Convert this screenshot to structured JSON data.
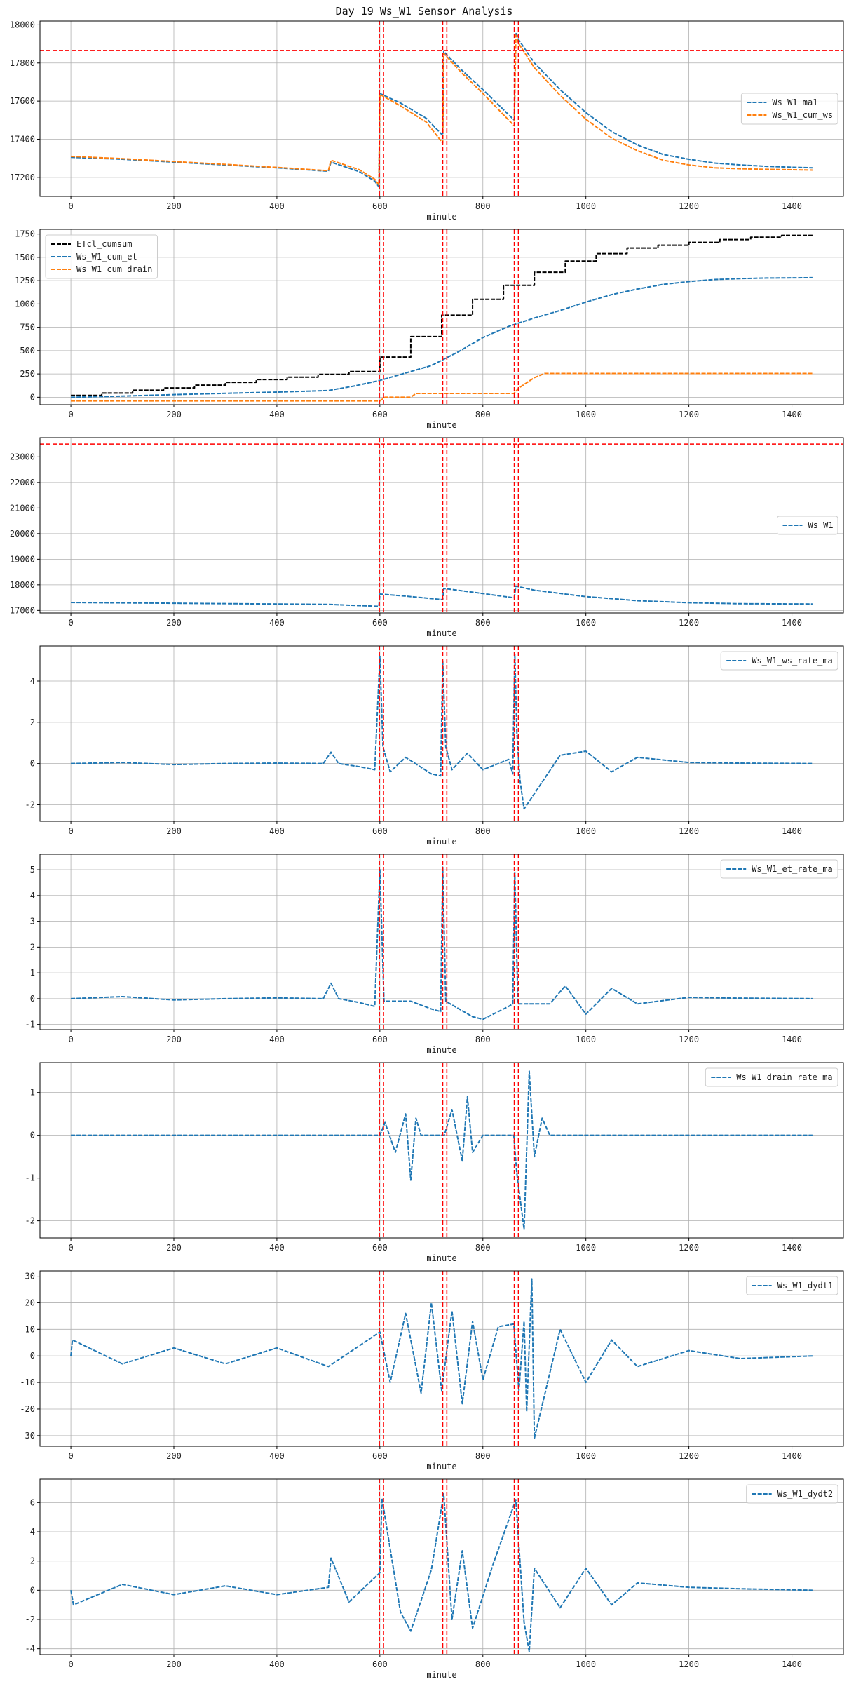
{
  "figure": {
    "title": "Day 19 Ws_W1 Sensor Analysis"
  },
  "chart_data": [
    {
      "type": "line",
      "xlabel": "minute",
      "xlim": [
        -60,
        1500
      ],
      "ylim": [
        17100,
        18020
      ],
      "xticks": [
        0,
        200,
        400,
        600,
        800,
        1000,
        1200,
        1400
      ],
      "yticks": [
        17200,
        17400,
        17600,
        17800,
        18000
      ],
      "hlines": [
        17865
      ],
      "vlines": [
        599,
        607,
        722,
        730,
        861,
        869
      ],
      "legend": "center-right",
      "series": [
        {
          "name": "Ws_W1_ma1",
          "color": "#1f77b4",
          "style": "dashed",
          "x": [
            0,
            100,
            200,
            300,
            400,
            500,
            505,
            560,
            590,
            598,
            600,
            640,
            690,
            722,
            724,
            760,
            800,
            861,
            864,
            870,
            900,
            950,
            1000,
            1050,
            1100,
            1150,
            1200,
            1250,
            1300,
            1350,
            1400,
            1440
          ],
          "y": [
            17305,
            17295,
            17280,
            17265,
            17250,
            17232,
            17280,
            17230,
            17180,
            17150,
            17640,
            17590,
            17510,
            17420,
            17860,
            17760,
            17660,
            17500,
            17960,
            17920,
            17800,
            17660,
            17540,
            17440,
            17370,
            17320,
            17295,
            17275,
            17265,
            17258,
            17253,
            17250
          ]
        },
        {
          "name": "Ws_W1_cum_ws",
          "color": "#ff7f0e",
          "style": "dashed",
          "x": [
            0,
            100,
            200,
            300,
            400,
            500,
            505,
            560,
            590,
            598,
            600,
            640,
            690,
            722,
            724,
            760,
            800,
            861,
            864,
            870,
            900,
            950,
            1000,
            1050,
            1100,
            1150,
            1200,
            1250,
            1300,
            1350,
            1400,
            1440
          ],
          "y": [
            17310,
            17298,
            17283,
            17268,
            17252,
            17235,
            17290,
            17240,
            17190,
            17160,
            17635,
            17575,
            17490,
            17380,
            17850,
            17745,
            17640,
            17470,
            17945,
            17900,
            17775,
            17630,
            17505,
            17405,
            17340,
            17290,
            17265,
            17250,
            17245,
            17242,
            17240,
            17238
          ]
        }
      ]
    },
    {
      "type": "line",
      "xlabel": "minute",
      "xlim": [
        -60,
        1500
      ],
      "ylim": [
        -80,
        1800
      ],
      "xticks": [
        0,
        200,
        400,
        600,
        800,
        1000,
        1200,
        1400
      ],
      "yticks": [
        0,
        250,
        500,
        750,
        1000,
        1250,
        1500,
        1750
      ],
      "hlines": [],
      "vlines": [
        599,
        607,
        722,
        730,
        861,
        869
      ],
      "legend": "top-left",
      "series": [
        {
          "name": "ETcl_cumsum",
          "color": "#000000",
          "style": "dashed",
          "step": true,
          "x": [
            0,
            60,
            120,
            180,
            240,
            300,
            360,
            420,
            480,
            540,
            600,
            660,
            720,
            780,
            840,
            900,
            960,
            1020,
            1080,
            1140,
            1200,
            1260,
            1320,
            1380,
            1440
          ],
          "y": [
            20,
            45,
            75,
            100,
            130,
            160,
            190,
            215,
            245,
            275,
            430,
            650,
            880,
            1050,
            1200,
            1340,
            1460,
            1540,
            1600,
            1630,
            1660,
            1690,
            1715,
            1735,
            1750
          ]
        },
        {
          "name": "Ws_W1_cum_et",
          "color": "#1f77b4",
          "style": "dashed",
          "x": [
            0,
            100,
            200,
            300,
            400,
            500,
            550,
            600,
            650,
            700,
            750,
            800,
            850,
            900,
            950,
            1000,
            1050,
            1100,
            1150,
            1200,
            1250,
            1300,
            1350,
            1400,
            1440
          ],
          "y": [
            0,
            12,
            28,
            42,
            55,
            72,
            120,
            180,
            260,
            340,
            480,
            640,
            760,
            850,
            930,
            1020,
            1100,
            1160,
            1210,
            1240,
            1262,
            1272,
            1278,
            1280,
            1282
          ]
        },
        {
          "name": "Ws_W1_cum_drain",
          "color": "#ff7f0e",
          "style": "dashed",
          "x": [
            0,
            600,
            610,
            660,
            670,
            730,
            740,
            860,
            870,
            900,
            920,
            940,
            1000,
            1200,
            1440
          ],
          "y": [
            -40,
            -40,
            0,
            0,
            40,
            40,
            40,
            40,
            100,
            210,
            255,
            255,
            255,
            255,
            255
          ]
        }
      ]
    },
    {
      "type": "line",
      "xlabel": "minute",
      "xlim": [
        -60,
        1500
      ],
      "ylim": [
        16900,
        23750
      ],
      "xticks": [
        0,
        200,
        400,
        600,
        800,
        1000,
        1200,
        1400
      ],
      "yticks": [
        17000,
        18000,
        19000,
        20000,
        21000,
        22000,
        23000
      ],
      "hlines": [
        23500
      ],
      "vlines": [
        599,
        607,
        722,
        730,
        861,
        869
      ],
      "legend": "center-right",
      "series": [
        {
          "name": "Ws_W1",
          "color": "#1f77b4",
          "style": "dashed",
          "x": [
            0,
            100,
            200,
            300,
            400,
            500,
            598,
            600,
            650,
            722,
            724,
            800,
            861,
            864,
            900,
            1000,
            1100,
            1200,
            1300,
            1440
          ],
          "y": [
            17310,
            17295,
            17280,
            17265,
            17250,
            17235,
            17160,
            17640,
            17560,
            17420,
            17860,
            17660,
            17490,
            17950,
            17790,
            17540,
            17380,
            17300,
            17262,
            17250
          ]
        }
      ]
    },
    {
      "type": "line",
      "xlabel": "minute",
      "xlim": [
        -60,
        1500
      ],
      "ylim": [
        -2.8,
        5.7
      ],
      "xticks": [
        0,
        200,
        400,
        600,
        800,
        1000,
        1200,
        1400
      ],
      "yticks": [
        -2,
        0,
        2,
        4
      ],
      "hlines": [],
      "vlines": [
        599,
        607,
        722,
        730,
        861,
        869
      ],
      "legend": "top-right",
      "series": [
        {
          "name": "Ws_W1_ws_rate_ma",
          "color": "#1f77b4",
          "style": "dashed",
          "x": [
            0,
            100,
            200,
            300,
            400,
            490,
            505,
            520,
            560,
            590,
            600,
            606,
            620,
            650,
            700,
            718,
            722,
            728,
            740,
            770,
            800,
            850,
            858,
            862,
            866,
            872,
            880,
            950,
            1000,
            1050,
            1100,
            1200,
            1300,
            1440
          ],
          "y": [
            0,
            0.05,
            -0.05,
            0,
            0.02,
            0,
            0.55,
            0,
            -0.15,
            -0.3,
            5.2,
            0.8,
            -0.4,
            0.3,
            -0.5,
            -0.6,
            5.0,
            0.8,
            -0.3,
            0.5,
            -0.3,
            0.2,
            -0.5,
            5.3,
            1.5,
            -0.8,
            -2.2,
            0.4,
            0.6,
            -0.4,
            0.3,
            0.05,
            0.02,
            0
          ]
        }
      ]
    },
    {
      "type": "line",
      "xlabel": "minute",
      "xlim": [
        -60,
        1500
      ],
      "ylim": [
        -1.2,
        5.6
      ],
      "xticks": [
        0,
        200,
        400,
        600,
        800,
        1000,
        1200,
        1400
      ],
      "yticks": [
        -1,
        0,
        1,
        2,
        3,
        4,
        5
      ],
      "hlines": [],
      "vlines": [
        599,
        607,
        722,
        730,
        861,
        869
      ],
      "legend": "top-right",
      "series": [
        {
          "name": "Ws_W1_et_rate_ma",
          "color": "#1f77b4",
          "style": "dashed",
          "x": [
            0,
            100,
            200,
            300,
            400,
            490,
            505,
            520,
            560,
            590,
            600,
            608,
            660,
            700,
            718,
            722,
            728,
            780,
            800,
            850,
            858,
            862,
            868,
            930,
            960,
            1000,
            1050,
            1100,
            1200,
            1300,
            1440
          ],
          "y": [
            0,
            0.08,
            -0.05,
            0,
            0.03,
            0,
            0.6,
            0,
            -0.15,
            -0.3,
            5.0,
            -0.1,
            -0.1,
            -0.4,
            -0.5,
            5.1,
            -0.1,
            -0.7,
            -0.8,
            -0.3,
            -0.2,
            4.9,
            -0.2,
            -0.2,
            0.5,
            -0.6,
            0.4,
            -0.2,
            0.05,
            0.02,
            0
          ]
        }
      ]
    },
    {
      "type": "line",
      "xlabel": "minute",
      "xlim": [
        -60,
        1500
      ],
      "ylim": [
        -2.4,
        1.7
      ],
      "xticks": [
        0,
        200,
        400,
        600,
        800,
        1000,
        1200,
        1400
      ],
      "yticks": [
        -2,
        -1,
        0,
        1
      ],
      "hlines": [],
      "vlines": [
        599,
        607,
        722,
        730,
        861,
        869
      ],
      "legend": "top-right",
      "series": [
        {
          "name": "Ws_W1_drain_rate_ma",
          "color": "#1f77b4",
          "style": "dashed",
          "x": [
            0,
            300,
            600,
            610,
            630,
            650,
            660,
            670,
            680,
            725,
            740,
            760,
            770,
            780,
            800,
            860,
            866,
            880,
            890,
            900,
            915,
            930,
            1200,
            1440
          ],
          "y": [
            0,
            0,
            0,
            0.3,
            -0.4,
            0.5,
            -1.05,
            0.4,
            0,
            0,
            0.6,
            -0.6,
            0.9,
            -0.4,
            0,
            0,
            -0.9,
            -2.2,
            1.5,
            -0.5,
            0.4,
            0,
            0,
            0
          ]
        }
      ]
    },
    {
      "type": "line",
      "xlabel": "minute",
      "xlim": [
        -60,
        1500
      ],
      "ylim": [
        -34,
        32
      ],
      "xticks": [
        0,
        200,
        400,
        600,
        800,
        1000,
        1200,
        1400
      ],
      "yticks": [
        -30,
        -20,
        -10,
        0,
        10,
        20,
        30
      ],
      "hlines": [],
      "vlines": [
        599,
        607,
        722,
        730,
        861,
        869
      ],
      "legend": "top-right",
      "series": [
        {
          "name": "Ws_W1_dydt1",
          "color": "#1f77b4",
          "style": "dashed",
          "x": [
            0,
            3,
            100,
            200,
            300,
            400,
            500,
            600,
            620,
            650,
            680,
            700,
            720,
            740,
            760,
            780,
            800,
            830,
            860,
            870,
            880,
            885,
            895,
            900,
            950,
            1000,
            1050,
            1100,
            1200,
            1300,
            1440
          ],
          "y": [
            0,
            6,
            -3,
            3,
            -3,
            3,
            -4,
            9,
            -10,
            16,
            -14,
            20,
            -13,
            17,
            -18,
            13,
            -9,
            11,
            12,
            -13,
            13,
            -21,
            29,
            -31,
            10,
            -10,
            6,
            -4,
            2,
            -1,
            0
          ]
        }
      ]
    },
    {
      "type": "line",
      "xlabel": "minute",
      "xlim": [
        -60,
        1500
      ],
      "ylim": [
        -4.4,
        7.6
      ],
      "xticks": [
        0,
        200,
        400,
        600,
        800,
        1000,
        1200,
        1400
      ],
      "yticks": [
        -4,
        -2,
        0,
        2,
        4,
        6
      ],
      "hlines": [],
      "vlines": [
        599,
        607,
        722,
        730,
        861,
        869
      ],
      "legend": "top-right",
      "series": [
        {
          "name": "Ws_W1_dydt2",
          "color": "#1f77b4",
          "style": "dashed",
          "x": [
            0,
            5,
            100,
            200,
            300,
            400,
            500,
            505,
            540,
            600,
            604,
            640,
            660,
            700,
            724,
            740,
            760,
            780,
            820,
            864,
            880,
            890,
            900,
            950,
            1000,
            1050,
            1100,
            1200,
            1300,
            1440
          ],
          "y": [
            0,
            -1,
            0.4,
            -0.3,
            0.3,
            -0.3,
            0.2,
            2.2,
            -0.8,
            1.2,
            6.3,
            -1.5,
            -2.8,
            1.4,
            6.6,
            -2.0,
            2.7,
            -2.6,
            1.8,
            6.2,
            -2.2,
            -4.2,
            1.5,
            -1.2,
            1.5,
            -1.0,
            0.5,
            0.2,
            0.1,
            0
          ]
        }
      ]
    }
  ]
}
